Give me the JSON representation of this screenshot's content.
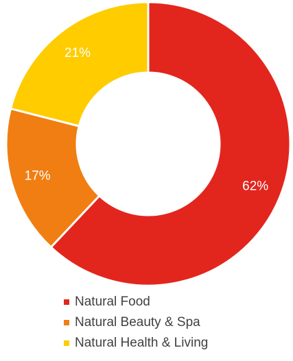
{
  "chart_data": {
    "type": "pie",
    "donut": true,
    "categories": [
      "Natural Food",
      "Natural Beauty & Spa",
      "Natural Health & Living"
    ],
    "values": [
      62,
      17,
      21
    ],
    "data_labels": [
      "62%",
      "17%",
      "21%"
    ],
    "colors": [
      "#E2261D",
      "#F07E12",
      "#FFCC00"
    ],
    "legend_position": "bottom"
  }
}
